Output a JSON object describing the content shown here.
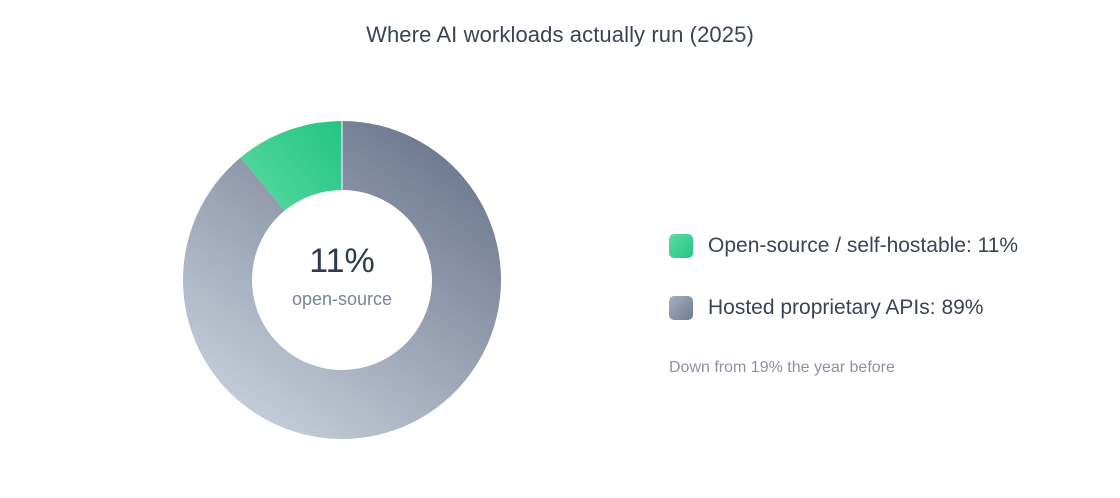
{
  "chart_data": {
    "type": "pie",
    "title": "Where AI workloads actually run (2025)",
    "labels": [
      "Open-source / self-hostable",
      "Hosted proprietary APIs"
    ],
    "values": [
      11,
      89
    ],
    "unit": "%",
    "legend_entries": [
      "Open-source / self-hostable: 11%",
      "Hosted proprietary APIs: 89%"
    ],
    "center_value": "11%",
    "center_label": "open-source",
    "annotation": "Down from 19% the year before",
    "legend_position": "right",
    "colors": [
      "#2ecc8e",
      "#8a94a6"
    ],
    "donut": true
  }
}
